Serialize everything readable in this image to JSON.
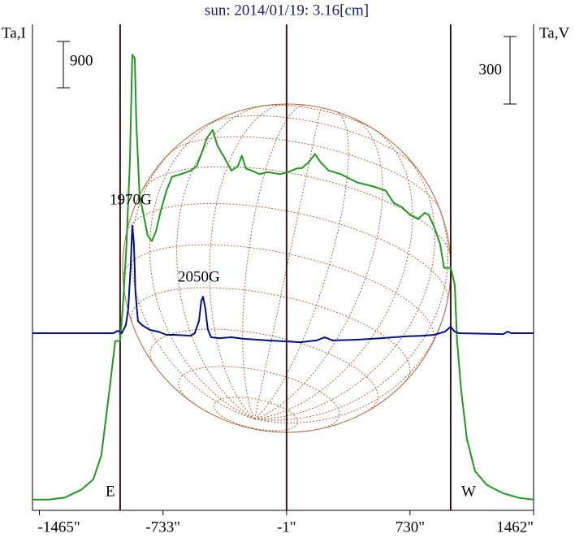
{
  "chart_data": {
    "type": "line",
    "title": "sun: 2014/01/19: 3.16[cm]",
    "ylabel": "Ta,I",
    "y2label": "Ta,V",
    "xlim": [
      -1506,
      1462
    ],
    "ylim": [
      0,
      9440
    ],
    "y2lim": [
      -787,
      1372
    ],
    "xticks": [
      {
        "value": -1465,
        "label": "-1465\""
      },
      {
        "value": -733,
        "label": "-733\""
      },
      {
        "value": -1,
        "label": "-1\""
      },
      {
        "value": 730,
        "label": "730\""
      },
      {
        "value": 1462,
        "label": "1462\""
      }
    ],
    "vlines": [
      -987,
      -1,
      971
    ],
    "scale_bars": [
      {
        "axis": "y",
        "value": 900
      },
      {
        "axis": "y2",
        "value": 300
      }
    ],
    "annotations": [
      "1970G",
      "2050G",
      "E",
      "W"
    ],
    "series": [
      {
        "color": "#1e9b1e",
        "axis": "y",
        "x": [
          -1506,
          -1410,
          -1314,
          -1218,
          -1146,
          -1098,
          -1050,
          -1016,
          -987,
          -968,
          -949,
          -929,
          -915,
          -900,
          -891,
          -872,
          -843,
          -824,
          -799,
          -775,
          -747,
          -713,
          -679,
          -617,
          -569,
          -535,
          -506,
          -472,
          -439,
          -410,
          -376,
          -328,
          -290,
          -266,
          -242,
          -208,
          -160,
          -112,
          -39,
          9,
          57,
          90,
          129,
          167,
          201,
          249,
          321,
          417,
          514,
          586,
          634,
          682,
          730,
          778,
          817,
          841,
          874,
          908,
          932,
          971,
          995,
          1009,
          1033,
          1067,
          1115,
          1187,
          1283,
          1380,
          1462
        ],
        "values": [
          210,
          210,
          250,
          400,
          600,
          1070,
          2340,
          3290,
          3290,
          4080,
          5180,
          6760,
          8850,
          8780,
          7550,
          6130,
          5660,
          5340,
          5230,
          5420,
          5810,
          6210,
          6480,
          6540,
          6600,
          6680,
          6920,
          7240,
          7390,
          7080,
          6890,
          6600,
          6680,
          6890,
          6640,
          6600,
          6530,
          6570,
          6530,
          6570,
          6640,
          6650,
          6760,
          6920,
          6760,
          6600,
          6530,
          6370,
          6290,
          6210,
          5970,
          5890,
          5740,
          5660,
          5780,
          5740,
          5500,
          5180,
          4710,
          4710,
          4390,
          3290,
          2340,
          1390,
          760,
          490,
          330,
          240,
          210
        ]
      },
      {
        "color": "#00108c",
        "axis": "y2",
        "x": [
          -1506,
          -1026,
          -1002,
          -977,
          -953,
          -939,
          -925,
          -915,
          -905,
          -896,
          -881,
          -857,
          -833,
          -809,
          -761,
          -713,
          -665,
          -569,
          -545,
          -520,
          -506,
          -496,
          -482,
          -468,
          -448,
          -400,
          -328,
          -256,
          -112,
          -15,
          81,
          177,
          225,
          273,
          417,
          562,
          706,
          802,
          874,
          937,
          971,
          995,
          1019,
          1283,
          1307,
          1331,
          1462
        ],
        "values": [
          0,
          0,
          11,
          0,
          36,
          108,
          289,
          477,
          397,
          181,
          54,
          36,
          25,
          14,
          7,
          -7,
          -7,
          -11,
          0,
          54,
          144,
          162,
          108,
          18,
          -18,
          -22,
          -18,
          -25,
          -32,
          -36,
          -40,
          -32,
          -18,
          -32,
          -29,
          -22,
          -14,
          -11,
          -7,
          7,
          29,
          7,
          0,
          -4,
          7,
          0,
          0
        ]
      }
    ]
  }
}
